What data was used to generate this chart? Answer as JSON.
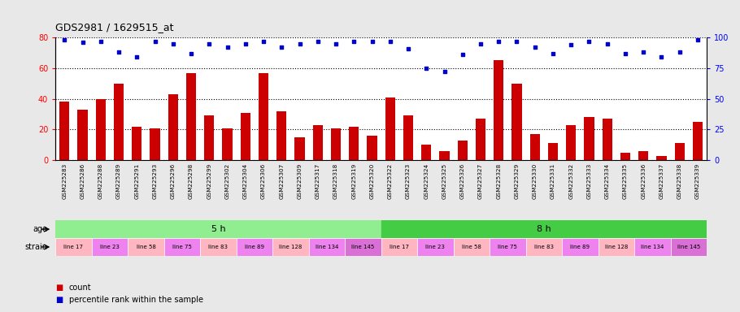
{
  "title": "GDS2981 / 1629515_at",
  "samples": [
    "GSM225283",
    "GSM225286",
    "GSM225288",
    "GSM225289",
    "GSM225291",
    "GSM225293",
    "GSM225296",
    "GSM225298",
    "GSM225299",
    "GSM225302",
    "GSM225304",
    "GSM225306",
    "GSM225307",
    "GSM225309",
    "GSM225317",
    "GSM225318",
    "GSM225319",
    "GSM225320",
    "GSM225322",
    "GSM225323",
    "GSM225324",
    "GSM225325",
    "GSM225326",
    "GSM225327",
    "GSM225328",
    "GSM225329",
    "GSM225330",
    "GSM225331",
    "GSM225332",
    "GSM225333",
    "GSM225334",
    "GSM225335",
    "GSM225336",
    "GSM225337",
    "GSM225338",
    "GSM225339"
  ],
  "counts": [
    38,
    33,
    40,
    50,
    22,
    21,
    43,
    57,
    29,
    21,
    31,
    57,
    32,
    15,
    23,
    21,
    22,
    16,
    41,
    29,
    10,
    6,
    13,
    27,
    65,
    50,
    17,
    11,
    23,
    28,
    27,
    5,
    6,
    3,
    11,
    25
  ],
  "percentile": [
    98,
    96,
    97,
    88,
    84,
    97,
    95,
    87,
    95,
    92,
    95,
    97,
    92,
    95,
    97,
    95,
    97,
    97,
    97,
    91,
    75,
    72,
    86,
    95,
    97,
    97,
    92,
    87,
    94,
    97,
    95,
    87,
    88,
    84,
    88,
    98
  ],
  "bar_color": "#cc0000",
  "dot_color": "#0000cc",
  "ylim_left": [
    0,
    80
  ],
  "ylim_right": [
    0,
    100
  ],
  "yticks_left": [
    0,
    20,
    40,
    60,
    80
  ],
  "yticks_right": [
    0,
    25,
    50,
    75,
    100
  ],
  "age_groups": [
    {
      "label": "5 h",
      "start": 0,
      "end": 18,
      "color": "#90ee90"
    },
    {
      "label": "8 h",
      "start": 18,
      "end": 36,
      "color": "#44cc44"
    }
  ],
  "strain_groups": [
    {
      "label": "line 17",
      "start": 0,
      "end": 2,
      "color": "#ffb6c1"
    },
    {
      "label": "line 23",
      "start": 2,
      "end": 4,
      "color": "#ee82ee"
    },
    {
      "label": "line 58",
      "start": 4,
      "end": 6,
      "color": "#ffb6c1"
    },
    {
      "label": "line 75",
      "start": 6,
      "end": 8,
      "color": "#ee82ee"
    },
    {
      "label": "line 83",
      "start": 8,
      "end": 10,
      "color": "#ffb6c1"
    },
    {
      "label": "line 89",
      "start": 10,
      "end": 12,
      "color": "#ee82ee"
    },
    {
      "label": "line 128",
      "start": 12,
      "end": 14,
      "color": "#ffb6c1"
    },
    {
      "label": "line 134",
      "start": 14,
      "end": 16,
      "color": "#ee82ee"
    },
    {
      "label": "line 145",
      "start": 16,
      "end": 18,
      "color": "#da70d6"
    },
    {
      "label": "line 17",
      "start": 18,
      "end": 20,
      "color": "#ffb6c1"
    },
    {
      "label": "line 23",
      "start": 20,
      "end": 22,
      "color": "#ee82ee"
    },
    {
      "label": "line 58",
      "start": 22,
      "end": 24,
      "color": "#ffb6c1"
    },
    {
      "label": "line 75",
      "start": 24,
      "end": 26,
      "color": "#ee82ee"
    },
    {
      "label": "line 83",
      "start": 26,
      "end": 28,
      "color": "#ffb6c1"
    },
    {
      "label": "line 89",
      "start": 28,
      "end": 30,
      "color": "#ee82ee"
    },
    {
      "label": "line 128",
      "start": 30,
      "end": 32,
      "color": "#ffb6c1"
    },
    {
      "label": "line 134",
      "start": 32,
      "end": 34,
      "color": "#ee82ee"
    },
    {
      "label": "line 145",
      "start": 34,
      "end": 36,
      "color": "#da70d6"
    }
  ],
  "bg_color": "#e8e8e8",
  "plot_bg": "#ffffff",
  "xtick_bg": "#d0d0d0"
}
